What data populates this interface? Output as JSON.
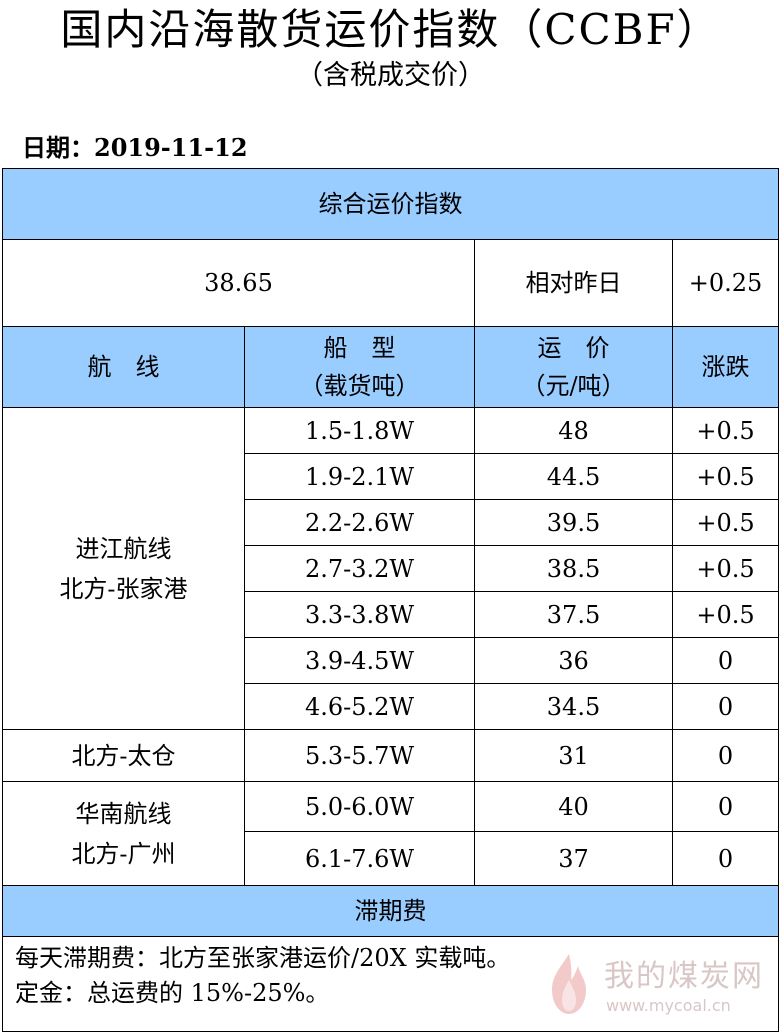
{
  "title": "国内沿海散货运价指数（CCBF）",
  "subtitle": "（含税成交价）",
  "date_label": "日期：2019-11-12",
  "composite": {
    "header": "综合运价指数",
    "value": "38.65",
    "compare_label": "相对昨日",
    "change": "+0.25"
  },
  "columns": {
    "route": "航　线",
    "ship_type_line1": "船　型",
    "ship_type_line2": "（载货吨）",
    "price_line1": "运　价",
    "price_line2": "（元/吨）",
    "change": "涨跌"
  },
  "route_groups": [
    {
      "line1": "进江航线",
      "line2": "北方-张家港"
    },
    {
      "line1": "北方-太仓",
      "line2": ""
    },
    {
      "line1": "华南航线",
      "line2": "北方-广州"
    }
  ],
  "rows": [
    {
      "ship": "1.5-1.8W",
      "price": "48",
      "change": "+0.5"
    },
    {
      "ship": "1.9-2.1W",
      "price": "44.5",
      "change": "+0.5"
    },
    {
      "ship": "2.2-2.6W",
      "price": "39.5",
      "change": "+0.5"
    },
    {
      "ship": "2.7-3.2W",
      "price": "38.5",
      "change": "+0.5"
    },
    {
      "ship": "3.3-3.8W",
      "price": "37.5",
      "change": "+0.5"
    },
    {
      "ship": "3.9-4.5W",
      "price": "36",
      "change": "0"
    },
    {
      "ship": "4.6-5.2W",
      "price": "34.5",
      "change": "0"
    },
    {
      "ship": "5.3-5.7W",
      "price": "31",
      "change": "0"
    },
    {
      "ship": "5.0-6.0W",
      "price": "40",
      "change": "0"
    },
    {
      "ship": "6.1-7.6W",
      "price": "37",
      "change": "0"
    }
  ],
  "demurrage": {
    "header": "滞期费",
    "note_line1": "每天滞期费：北方至张家港运价/20X 实载吨。",
    "note_line2": "定金：总运费的 15%-25%。"
  },
  "watermark": {
    "cn": "我的煤炭网",
    "url": "www.mycoal.cn"
  },
  "colors": {
    "header_bg": "#99ccff",
    "border": "#000000",
    "watermark": "#d9c6c6"
  }
}
